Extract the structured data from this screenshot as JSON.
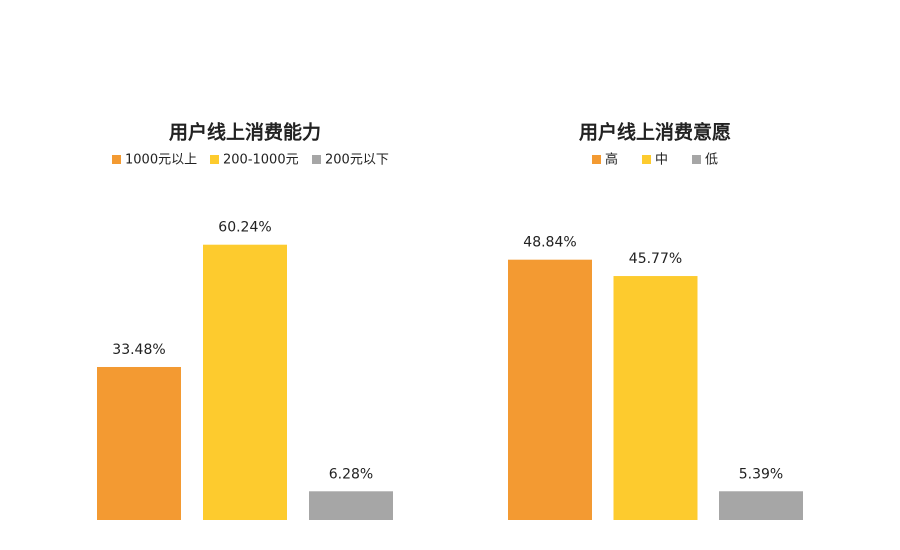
{
  "chart_data": [
    {
      "type": "bar",
      "title": "用户线上消费能力",
      "series": [
        {
          "name": "1000元以上",
          "color": "#f39a32",
          "values": [
            33.48
          ],
          "value_labels": [
            "33.48%"
          ]
        },
        {
          "name": "200-1000元",
          "color": "#fdcb2e",
          "values": [
            60.24
          ],
          "value_labels": [
            "60.24%"
          ]
        },
        {
          "name": "200元以下",
          "color": "#a6a6a6",
          "values": [
            6.28
          ],
          "value_labels": [
            "6.28%"
          ]
        }
      ]
    },
    {
      "type": "bar",
      "title": "用户线上消费意愿",
      "series": [
        {
          "name": "高",
          "color": "#f39a32",
          "values": [
            48.84
          ],
          "value_labels": [
            "48.84%"
          ]
        },
        {
          "name": "中",
          "color": "#fdcb2e",
          "values": [
            45.77
          ],
          "value_labels": [
            "45.77%"
          ]
        },
        {
          "name": "低",
          "color": "#a6a6a6",
          "values": [
            5.39
          ],
          "value_labels": [
            "5.39%"
          ]
        }
      ]
    }
  ]
}
